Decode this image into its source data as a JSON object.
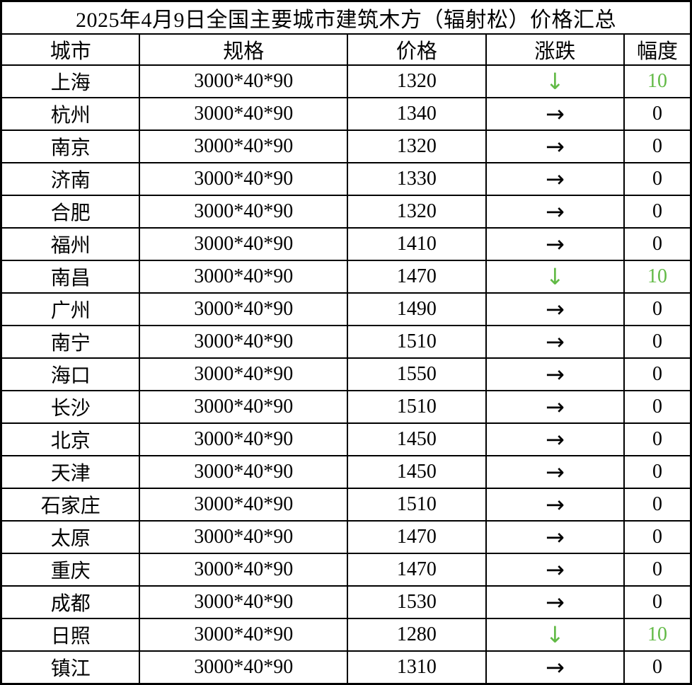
{
  "title": "2025年4月9日全国主要城市建筑木方（辐射松）价格汇总",
  "table": {
    "columns": [
      {
        "key": "city",
        "label": "城市"
      },
      {
        "key": "spec",
        "label": "规格"
      },
      {
        "key": "price",
        "label": "价格"
      },
      {
        "key": "trend",
        "label": "涨跌"
      },
      {
        "key": "change",
        "label": "幅度"
      }
    ],
    "rows": [
      {
        "city": "上海",
        "spec": "3000*40*90",
        "price": "1320",
        "trend": "down",
        "change": "10"
      },
      {
        "city": "杭州",
        "spec": "3000*40*90",
        "price": "1340",
        "trend": "flat",
        "change": "0"
      },
      {
        "city": "南京",
        "spec": "3000*40*90",
        "price": "1320",
        "trend": "flat",
        "change": "0"
      },
      {
        "city": "济南",
        "spec": "3000*40*90",
        "price": "1330",
        "trend": "flat",
        "change": "0"
      },
      {
        "city": "合肥",
        "spec": "3000*40*90",
        "price": "1320",
        "trend": "flat",
        "change": "0"
      },
      {
        "city": "福州",
        "spec": "3000*40*90",
        "price": "1410",
        "trend": "flat",
        "change": "0"
      },
      {
        "city": "南昌",
        "spec": "3000*40*90",
        "price": "1470",
        "trend": "down",
        "change": "10"
      },
      {
        "city": "广州",
        "spec": "3000*40*90",
        "price": "1490",
        "trend": "flat",
        "change": "0"
      },
      {
        "city": "南宁",
        "spec": "3000*40*90",
        "price": "1510",
        "trend": "flat",
        "change": "0"
      },
      {
        "city": "海口",
        "spec": "3000*40*90",
        "price": "1550",
        "trend": "flat",
        "change": "0"
      },
      {
        "city": "长沙",
        "spec": "3000*40*90",
        "price": "1510",
        "trend": "flat",
        "change": "0"
      },
      {
        "city": "北京",
        "spec": "3000*40*90",
        "price": "1450",
        "trend": "flat",
        "change": "0"
      },
      {
        "city": "天津",
        "spec": "3000*40*90",
        "price": "1450",
        "trend": "flat",
        "change": "0"
      },
      {
        "city": "石家庄",
        "spec": "3000*40*90",
        "price": "1510",
        "trend": "flat",
        "change": "0"
      },
      {
        "city": "太原",
        "spec": "3000*40*90",
        "price": "1470",
        "trend": "flat",
        "change": "0"
      },
      {
        "city": "重庆",
        "spec": "3000*40*90",
        "price": "1470",
        "trend": "flat",
        "change": "0"
      },
      {
        "city": "成都",
        "spec": "3000*40*90",
        "price": "1530",
        "trend": "flat",
        "change": "0"
      },
      {
        "city": "日照",
        "spec": "3000*40*90",
        "price": "1280",
        "trend": "down",
        "change": "10"
      },
      {
        "city": "镇江",
        "spec": "3000*40*90",
        "price": "1310",
        "trend": "flat",
        "change": "0"
      }
    ]
  },
  "icons": {
    "down_arrow": "↓",
    "right_arrow": "→"
  },
  "colors": {
    "down_green": "#62ba46",
    "text": "#000000",
    "border": "#000000",
    "background": "#ffffff"
  }
}
